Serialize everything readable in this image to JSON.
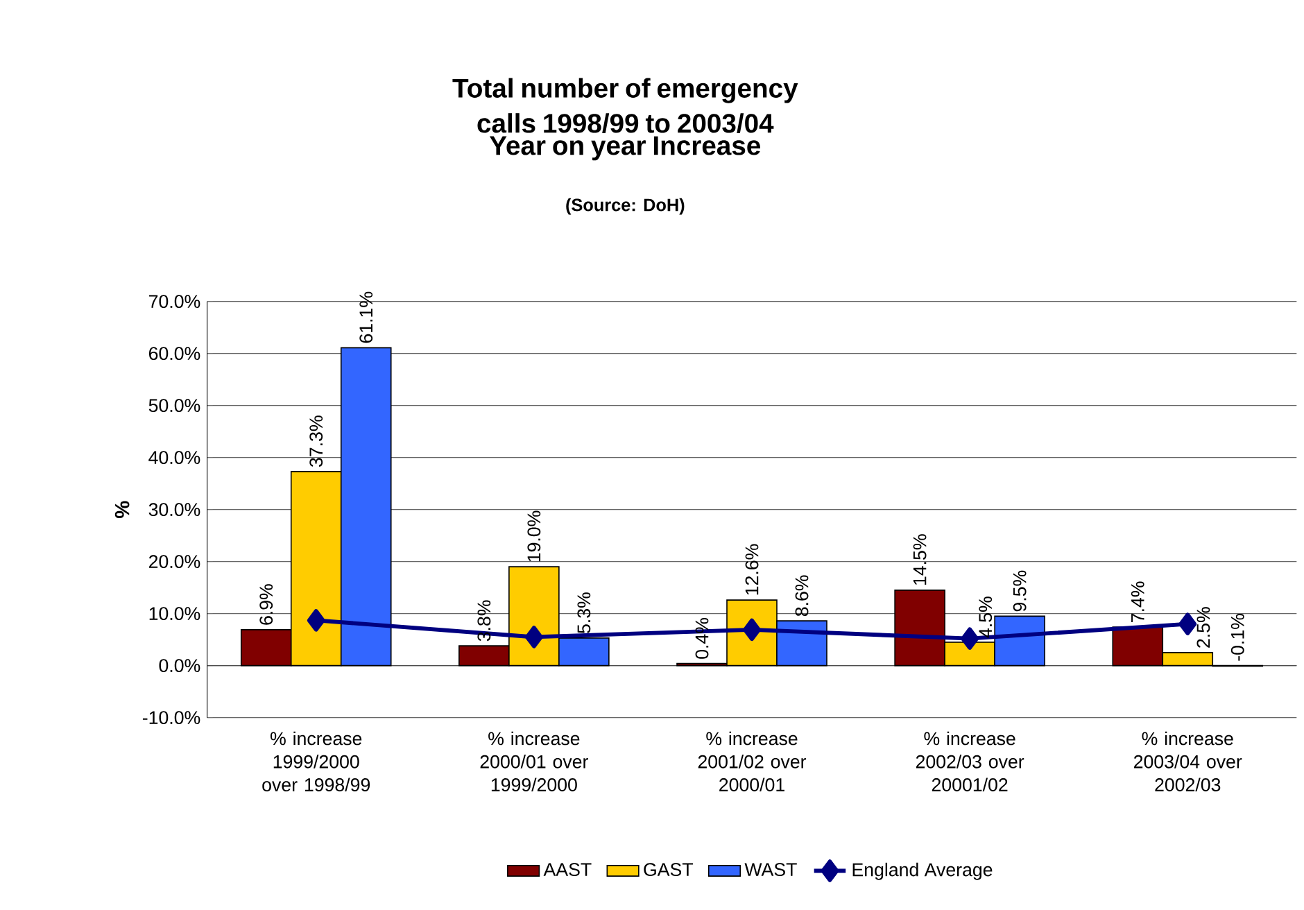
{
  "chart_data": {
    "type": "bar",
    "title": "Total number of emergency calls 1998/99 to 2003/04",
    "subtitle": "Year on year Increase",
    "ylabel": "%",
    "annotations": [
      "(Source: DoH)"
    ],
    "categories": [
      "% increase 1999/2000 over 1998/99",
      "% increase 2000/01 over 1999/2000",
      "% increase 2001/02 over 2000/01",
      "% increase 2002/03 over 20001/02",
      "% increase 2003/04 over 2002/03"
    ],
    "series": [
      {
        "name": "AAST",
        "color": "#800000",
        "values": [
          6.9,
          3.8,
          0.4,
          14.5,
          7.4
        ],
        "value_labels": [
          "6.9%",
          "3.8%",
          "0.4%",
          "14.5%",
          "7.4%"
        ]
      },
      {
        "name": "GAST",
        "color": "#ffcc00",
        "values": [
          37.3,
          19.0,
          12.6,
          4.5,
          2.5
        ],
        "value_labels": [
          "37.3%",
          "19.0%",
          "12.6%",
          "4.5%",
          "2.5%"
        ]
      },
      {
        "name": "WAST",
        "color": "#3366ff",
        "values": [
          61.1,
          5.3,
          8.6,
          9.5,
          -0.1
        ],
        "value_labels": [
          "61.1%",
          "5.3%",
          "8.6%",
          "9.5%",
          "-0.1%"
        ]
      },
      {
        "name": "England Average",
        "type": "line",
        "color": "#000080",
        "marker": "diamond",
        "values": [
          8.7,
          5.5,
          6.9,
          5.2,
          8.0
        ]
      }
    ],
    "ylim": [
      -10,
      70
    ],
    "yticks": [
      {
        "value": -10,
        "label": "-10.0%"
      },
      {
        "value": 0,
        "label": "0.0%"
      },
      {
        "value": 10,
        "label": "10.0%"
      },
      {
        "value": 20,
        "label": "20.0%"
      },
      {
        "value": 30,
        "label": "30.0%"
      },
      {
        "value": 40,
        "label": "40.0%"
      },
      {
        "value": 50,
        "label": "50.0%"
      },
      {
        "value": 60,
        "label": "60.0%"
      },
      {
        "value": 70,
        "label": "70.0%"
      }
    ],
    "grid": "y",
    "legend": "bottom"
  }
}
